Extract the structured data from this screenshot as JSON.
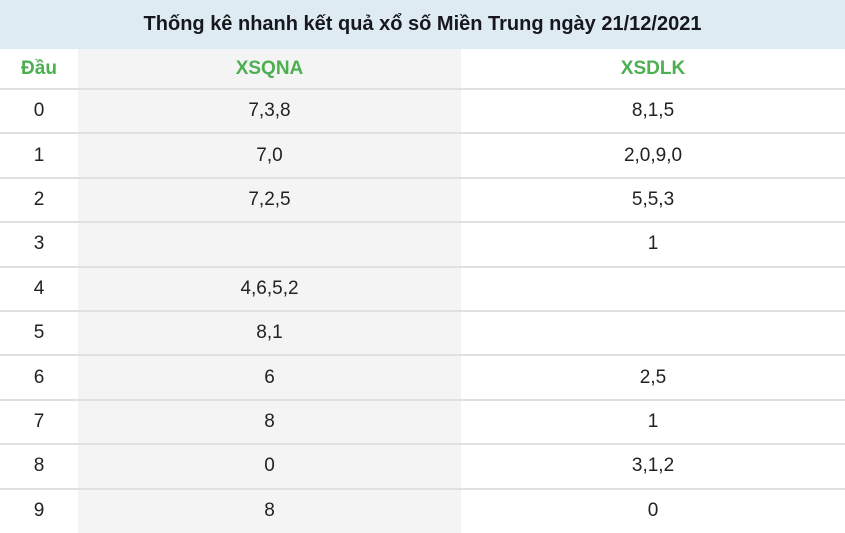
{
  "title": "Thống kê nhanh kết quả xổ số Miền Trung ngày 21/12/2021",
  "table": {
    "columns": {
      "dau": "Đầu",
      "xsqna": "XSQNA",
      "xsdlk": "XSDLK"
    },
    "rows": [
      {
        "dau": "0",
        "xsqna": "7,3,8",
        "xsdlk": "8,1,5"
      },
      {
        "dau": "1",
        "xsqna": "7,0",
        "xsdlk": "2,0,9,0"
      },
      {
        "dau": "2",
        "xsqna": "7,2,5",
        "xsdlk": "5,5,3"
      },
      {
        "dau": "3",
        "xsqna": "",
        "xsdlk": "1"
      },
      {
        "dau": "4",
        "xsqna": "4,6,5,2",
        "xsdlk": ""
      },
      {
        "dau": "5",
        "xsqna": "8,1",
        "xsdlk": ""
      },
      {
        "dau": "6",
        "xsqna": "6",
        "xsdlk": "2,5"
      },
      {
        "dau": "7",
        "xsqna": "8",
        "xsdlk": "1"
      },
      {
        "dau": "8",
        "xsqna": "0",
        "xsdlk": "3,1,2"
      },
      {
        "dau": "9",
        "xsqna": "8",
        "xsdlk": "0"
      }
    ]
  },
  "colors": {
    "title_bar_bg": "#dfebf3",
    "title_text": "#16181d",
    "header_green": "#4caf50",
    "col_alt_bg": "#f4f4f4",
    "row_border": "#e0e0e0",
    "cell_text": "#222222",
    "page_bg": "#ffffff"
  }
}
